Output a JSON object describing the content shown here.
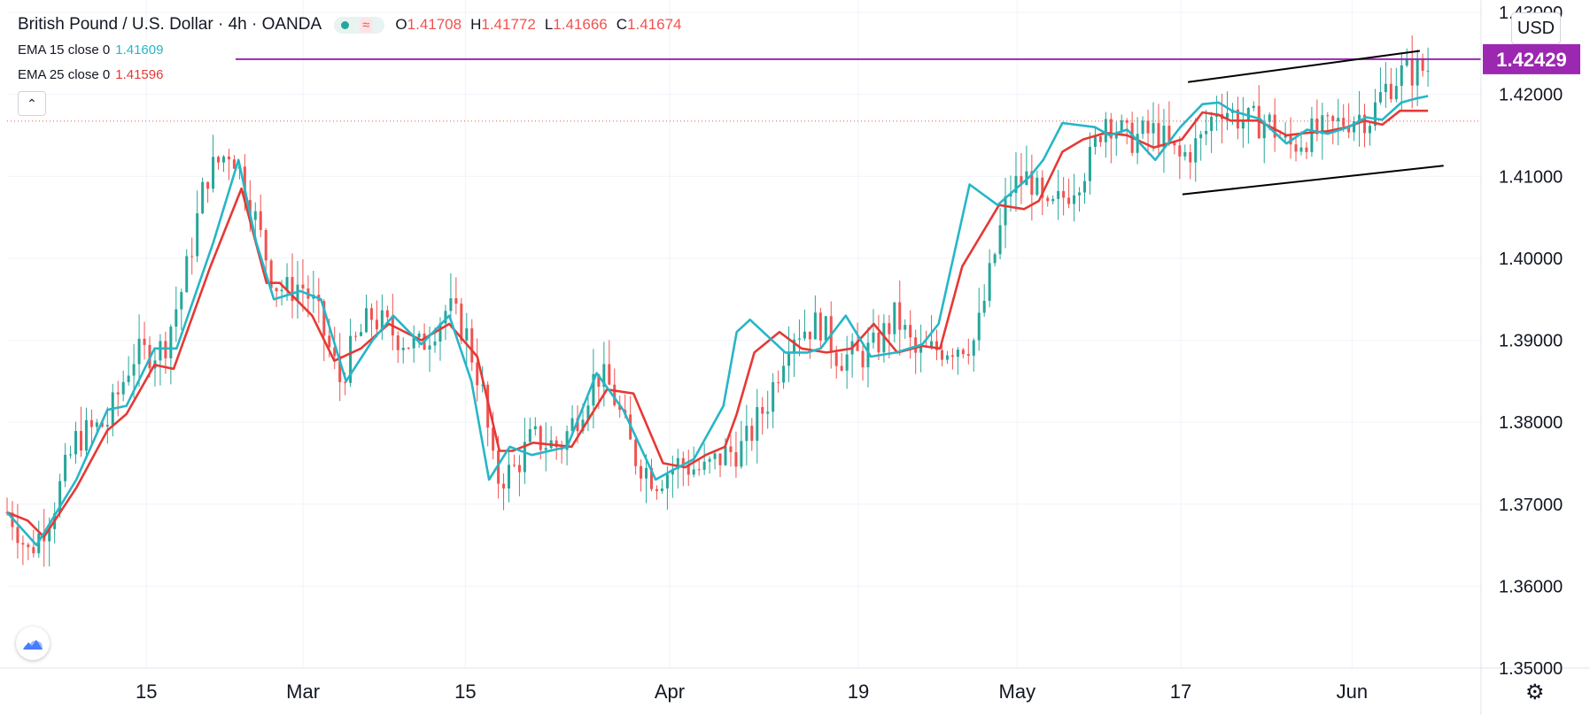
{
  "header": {
    "symbol": "British Pound / U.S. Dollar · 4h · OANDA",
    "ohlc": [
      {
        "key": "O",
        "value": "1.41708"
      },
      {
        "key": "H",
        "value": "1.41772"
      },
      {
        "key": "L",
        "value": "1.41666"
      },
      {
        "key": "C",
        "value": "1.41674"
      }
    ],
    "wave_glyph": "≈"
  },
  "indicators": [
    {
      "title": "EMA 15 close 0",
      "value": "1.41609",
      "color": "#26b6c6"
    },
    {
      "title": "EMA 25 close 0",
      "value": "1.41596",
      "color": "#e53935"
    }
  ],
  "controls": {
    "collapse_glyph": "⌃",
    "currency": "USD",
    "gear_glyph": "⚙"
  },
  "colors": {
    "up": "#26a69a",
    "down": "#ef5350",
    "horizontal_line": "#9c27b0",
    "current_price_line": "#ef5350"
  },
  "chart_data": {
    "type": "candlestick",
    "symbol": "GBP/USD",
    "timeframe": "4h",
    "ylim": [
      1.35,
      1.43
    ],
    "y_ticks": [
      "1.43000",
      "1.42000",
      "1.41000",
      "1.40000",
      "1.39000",
      "1.38000",
      "1.37000",
      "1.36000",
      "1.35000"
    ],
    "x_ticks": [
      {
        "label": "15",
        "pos": 0.0945
      },
      {
        "label": "Mar",
        "pos": 0.2008
      },
      {
        "label": "15",
        "pos": 0.3109
      },
      {
        "label": "Apr",
        "pos": 0.4495
      },
      {
        "label": "19",
        "pos": 0.5775
      },
      {
        "label": "May",
        "pos": 0.6853
      },
      {
        "label": "17",
        "pos": 0.7963
      },
      {
        "label": "Jun",
        "pos": 0.9125
      }
    ],
    "horizontal_level": {
      "value": 1.42429,
      "label": "1.42429"
    },
    "current_price": 1.41674,
    "trendlines": [
      {
        "x": [
          0.8012,
          0.9585
        ],
        "y": [
          1.4215,
          1.4253
        ]
      },
      {
        "x": [
          0.7974,
          0.9746
        ],
        "y": [
          1.4078,
          1.4113
        ]
      }
    ],
    "price_anchors": {
      "x": [
        0,
        0.005,
        0.014,
        0.021,
        0.03,
        0.047,
        0.068,
        0.085,
        0.106,
        0.12,
        0.135,
        0.152,
        0.159,
        0.168,
        0.181,
        0.19,
        0.199,
        0.209,
        0.226,
        0.234,
        0.247,
        0.261,
        0.279,
        0.299,
        0.311,
        0.322,
        0.331,
        0.343,
        0.356,
        0.375,
        0.387,
        0.4,
        0.41,
        0.425,
        0.44,
        0.456,
        0.473,
        0.486,
        0.5,
        0.517,
        0.531,
        0.552,
        0.564,
        0.578,
        0.588,
        0.603,
        0.617,
        0.632,
        0.657,
        0.68,
        0.694,
        0.705,
        0.719,
        0.735,
        0.745,
        0.76,
        0.78,
        0.795,
        0.811,
        0.822,
        0.83,
        0.841,
        0.855,
        0.869,
        0.882,
        0.895,
        0.906,
        0.916,
        0.925,
        0.934,
        0.945,
        0.955,
        0.964
      ],
      "y": [
        1.369,
        1.368,
        1.364,
        1.366,
        1.369,
        1.378,
        1.38,
        1.388,
        1.389,
        1.397,
        1.41,
        1.4135,
        1.41,
        1.405,
        1.397,
        1.396,
        1.397,
        1.394,
        1.385,
        1.389,
        1.393,
        1.391,
        1.389,
        1.394,
        1.391,
        1.384,
        1.373,
        1.374,
        1.378,
        1.377,
        1.381,
        1.386,
        1.384,
        1.376,
        1.373,
        1.375,
        1.374,
        1.376,
        1.377,
        1.383,
        1.391,
        1.392,
        1.388,
        1.388,
        1.389,
        1.393,
        1.388,
        1.389,
        1.39,
        1.4085,
        1.41,
        1.405,
        1.408,
        1.412,
        1.4175,
        1.4145,
        1.4155,
        1.412,
        1.4145,
        1.419,
        1.4178,
        1.4165,
        1.4168,
        1.4135,
        1.415,
        1.4155,
        1.4167,
        1.4175,
        1.4172,
        1.4205,
        1.4225,
        1.4228,
        1.4232
      ]
    },
    "ema_fast_anchors": {
      "x": [
        0,
        0.02,
        0.047,
        0.068,
        0.081,
        0.1,
        0.115,
        0.14,
        0.157,
        0.169,
        0.181,
        0.199,
        0.213,
        0.23,
        0.248,
        0.262,
        0.281,
        0.3,
        0.315,
        0.327,
        0.341,
        0.356,
        0.38,
        0.4,
        0.418,
        0.44,
        0.45,
        0.466,
        0.486,
        0.495,
        0.504,
        0.528,
        0.543,
        0.552,
        0.569,
        0.586,
        0.603,
        0.621,
        0.632,
        0.653,
        0.672,
        0.694,
        0.703,
        0.716,
        0.738,
        0.748,
        0.76,
        0.779,
        0.796,
        0.811,
        0.822,
        0.831,
        0.85,
        0.868,
        0.882,
        0.896,
        0.91,
        0.922,
        0.933,
        0.946,
        0.956,
        0.964
      ],
      "y": [
        1.369,
        1.365,
        1.373,
        1.3815,
        1.382,
        1.389,
        1.389,
        1.402,
        1.412,
        1.402,
        1.395,
        1.396,
        1.395,
        1.385,
        1.39,
        1.393,
        1.3895,
        1.393,
        1.385,
        1.373,
        1.377,
        1.376,
        1.377,
        1.386,
        1.3815,
        1.373,
        1.374,
        1.3755,
        1.382,
        1.391,
        1.3925,
        1.3885,
        1.3885,
        1.389,
        1.393,
        1.388,
        1.3885,
        1.3895,
        1.392,
        1.409,
        1.4065,
        1.41,
        1.412,
        1.4165,
        1.416,
        1.415,
        1.4157,
        1.412,
        1.416,
        1.4188,
        1.419,
        1.418,
        1.417,
        1.414,
        1.4157,
        1.4152,
        1.416,
        1.4172,
        1.4169,
        1.419,
        1.4195,
        1.4198
      ]
    },
    "ema_slow_anchors": {
      "x": [
        0,
        0.014,
        0.025,
        0.047,
        0.068,
        0.081,
        0.1,
        0.113,
        0.138,
        0.159,
        0.176,
        0.185,
        0.207,
        0.222,
        0.24,
        0.259,
        0.281,
        0.3,
        0.319,
        0.334,
        0.343,
        0.357,
        0.383,
        0.407,
        0.425,
        0.445,
        0.46,
        0.474,
        0.487,
        0.495,
        0.507,
        0.524,
        0.539,
        0.556,
        0.573,
        0.588,
        0.604,
        0.621,
        0.633,
        0.648,
        0.673,
        0.69,
        0.7,
        0.716,
        0.73,
        0.745,
        0.76,
        0.778,
        0.797,
        0.811,
        0.822,
        0.83,
        0.849,
        0.868,
        0.882,
        0.896,
        0.909,
        0.921,
        0.933,
        0.945,
        0.955,
        0.964
      ],
      "y": [
        1.369,
        1.368,
        1.366,
        1.372,
        1.379,
        1.381,
        1.387,
        1.3865,
        1.399,
        1.4085,
        1.397,
        1.397,
        1.393,
        1.3875,
        1.389,
        1.392,
        1.39,
        1.392,
        1.388,
        1.3765,
        1.3765,
        1.3775,
        1.377,
        1.384,
        1.3835,
        1.375,
        1.3745,
        1.376,
        1.377,
        1.381,
        1.3885,
        1.391,
        1.389,
        1.3885,
        1.389,
        1.392,
        1.3885,
        1.3893,
        1.389,
        1.399,
        1.4065,
        1.406,
        1.407,
        1.413,
        1.4145,
        1.4153,
        1.415,
        1.4135,
        1.4145,
        1.4178,
        1.4175,
        1.4168,
        1.4168,
        1.415,
        1.4153,
        1.4155,
        1.416,
        1.4168,
        1.4163,
        1.418,
        1.418,
        1.418
      ]
    }
  }
}
